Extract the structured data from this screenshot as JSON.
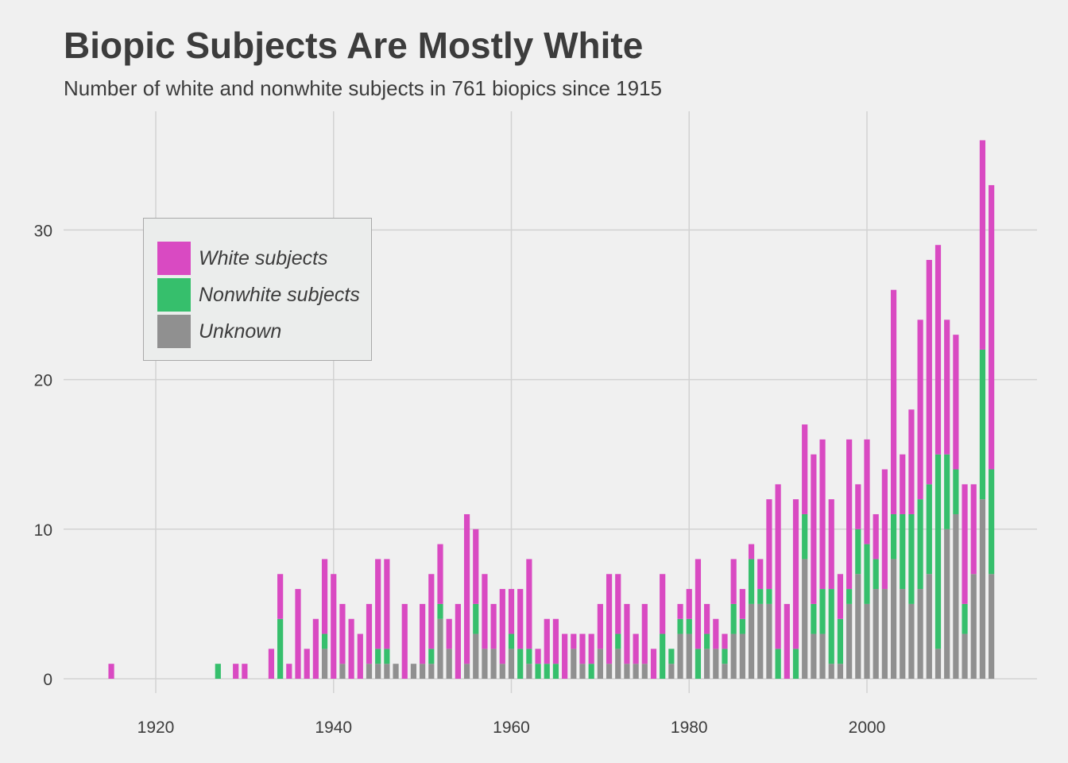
{
  "chart_data": {
    "type": "bar",
    "stacked": true,
    "title": "Biopic Subjects Are Mostly White",
    "subtitle": "Number of white and nonwhite subjects in 761 biopics since 1915",
    "xlabel": "",
    "ylabel": "",
    "xlim": [
      1910,
      2020
    ],
    "ylim": [
      -1,
      37
    ],
    "x_ticks": [
      1920,
      1940,
      1960,
      1980,
      2000
    ],
    "y_ticks": [
      0,
      10,
      20,
      30
    ],
    "grid": true,
    "legend_position": "top-left",
    "series": [
      {
        "name": "White subjects",
        "color": "#d94ac2"
      },
      {
        "name": "Nonwhite subjects",
        "color": "#36bf6c"
      },
      {
        "name": "Unknown",
        "color": "#909090"
      }
    ],
    "x": [
      1915,
      1927,
      1929,
      1930,
      1933,
      1934,
      1935,
      1936,
      1937,
      1938,
      1939,
      1940,
      1941,
      1942,
      1943,
      1944,
      1945,
      1946,
      1947,
      1948,
      1949,
      1950,
      1951,
      1952,
      1953,
      1954,
      1955,
      1956,
      1957,
      1958,
      1959,
      1960,
      1961,
      1962,
      1963,
      1964,
      1965,
      1966,
      1967,
      1968,
      1969,
      1970,
      1971,
      1972,
      1973,
      1974,
      1975,
      1976,
      1977,
      1978,
      1979,
      1980,
      1981,
      1982,
      1983,
      1984,
      1985,
      1986,
      1987,
      1988,
      1989,
      1990,
      1991,
      1992,
      1993,
      1994,
      1995,
      1996,
      1997,
      1998,
      1999,
      2000,
      2001,
      2002,
      2003,
      2004,
      2005,
      2006,
      2007,
      2008,
      2009,
      2010,
      2011,
      2012,
      2013,
      2014
    ],
    "unknown": [
      0,
      0,
      0,
      0,
      0,
      0,
      0,
      0,
      0,
      0,
      2,
      0,
      1,
      0,
      0,
      1,
      1,
      1,
      1,
      0,
      1,
      1,
      1,
      4,
      2,
      0,
      1,
      3,
      2,
      2,
      1,
      2,
      0,
      1,
      0,
      0,
      0,
      0,
      2,
      1,
      0,
      2,
      1,
      2,
      1,
      1,
      1,
      0,
      0,
      1,
      3,
      3,
      0,
      2,
      2,
      1,
      3,
      3,
      5,
      5,
      5,
      0,
      0,
      0,
      8,
      3,
      3,
      1,
      1,
      5,
      7,
      5,
      6,
      6,
      8,
      6,
      5,
      6,
      7,
      2,
      10,
      11,
      3,
      7,
      12,
      7
    ],
    "nonwhite": [
      0,
      1,
      0,
      0,
      0,
      4,
      0,
      0,
      0,
      0,
      1,
      0,
      0,
      0,
      0,
      0,
      1,
      1,
      0,
      0,
      0,
      0,
      1,
      1,
      0,
      0,
      0,
      2,
      0,
      0,
      0,
      1,
      2,
      1,
      1,
      1,
      1,
      0,
      0,
      0,
      1,
      0,
      0,
      1,
      0,
      0,
      0,
      0,
      3,
      1,
      1,
      1,
      2,
      1,
      0,
      1,
      2,
      1,
      3,
      1,
      1,
      2,
      0,
      2,
      3,
      2,
      3,
      5,
      3,
      1,
      3,
      4,
      2,
      0,
      3,
      5,
      6,
      6,
      6,
      13,
      5,
      3,
      2,
      0,
      10,
      7
    ],
    "white": [
      1,
      0,
      1,
      1,
      2,
      3,
      1,
      6,
      2,
      4,
      5,
      7,
      4,
      4,
      3,
      4,
      6,
      6,
      0,
      5,
      0,
      4,
      5,
      4,
      2,
      5,
      10,
      5,
      5,
      3,
      5,
      3,
      4,
      6,
      1,
      3,
      3,
      3,
      1,
      2,
      2,
      3,
      6,
      4,
      4,
      2,
      4,
      2,
      4,
      0,
      1,
      2,
      6,
      2,
      2,
      1,
      3,
      2,
      1,
      2,
      6,
      11,
      5,
      10,
      6,
      10,
      10,
      6,
      3,
      10,
      3,
      7,
      3,
      8,
      15,
      4,
      7,
      12,
      15,
      14,
      9,
      9,
      8,
      6,
      14,
      19
    ]
  }
}
